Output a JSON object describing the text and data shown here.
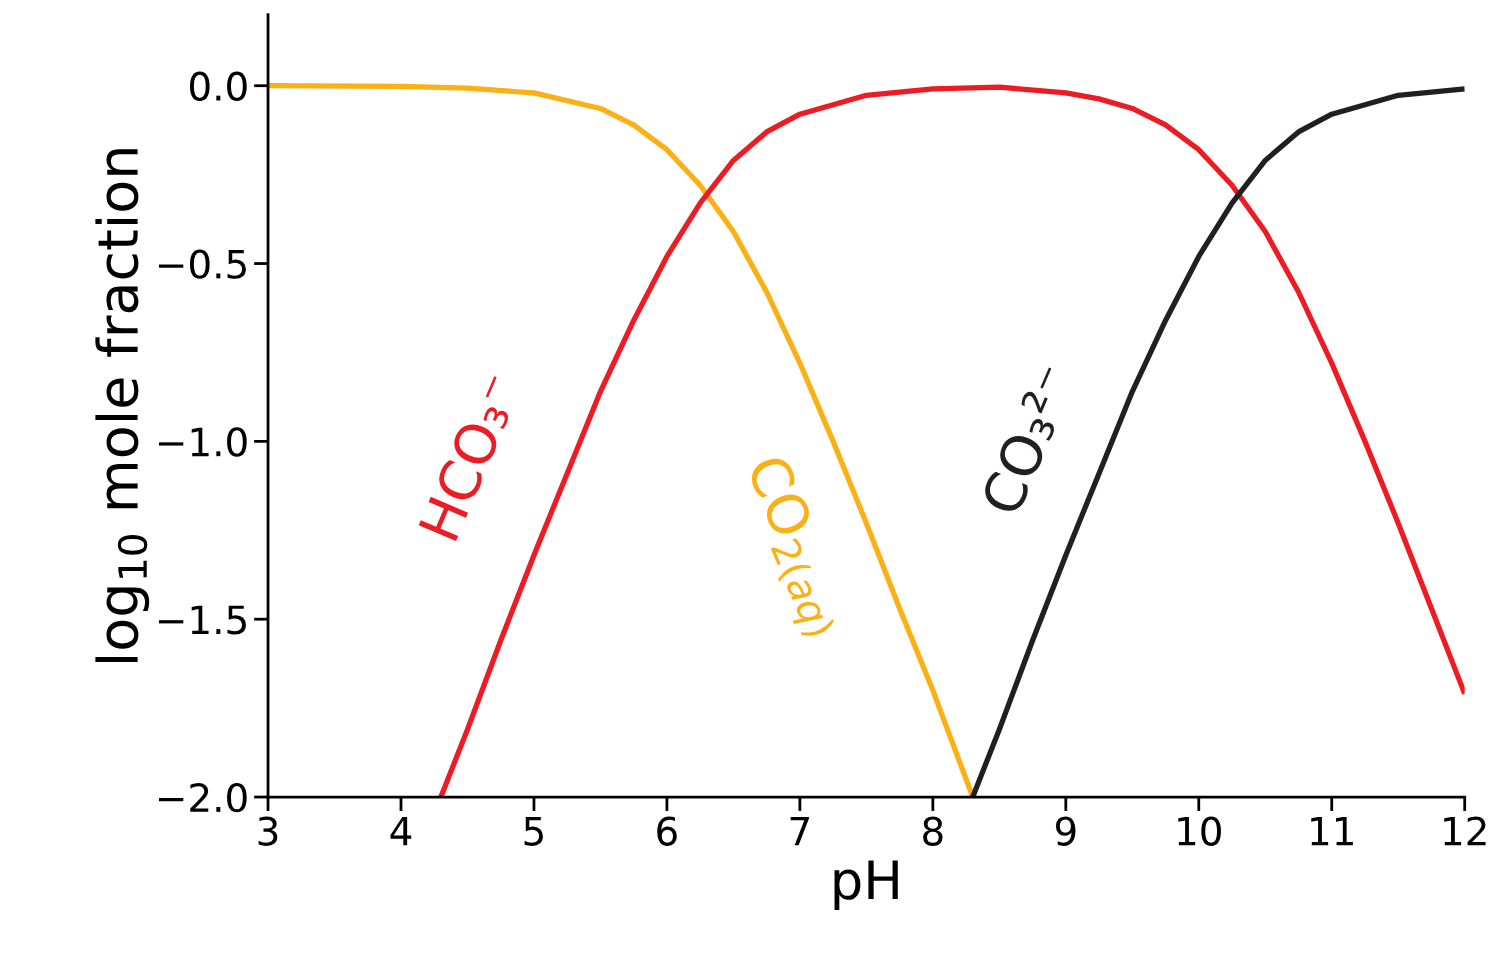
{
  "chart_data": {
    "type": "line",
    "xlabel": "pH",
    "ylabel": "log$_{10}$ mole fraction",
    "xlim": [
      3,
      12
    ],
    "ylim": [
      -2.0,
      0.2
    ],
    "xticks": [
      3,
      4,
      5,
      6,
      7,
      8,
      9,
      10,
      11,
      12
    ],
    "yticks": [
      {
        "value": 0.0,
        "label": "0.0"
      },
      {
        "value": -0.5,
        "label": "−0.5"
      },
      {
        "value": -1.0,
        "label": "−1.0"
      },
      {
        "value": -1.5,
        "label": "−1.5"
      },
      {
        "value": -2.0,
        "label": "−2.0"
      }
    ],
    "grid": false,
    "legend": false,
    "marker": "none",
    "line_style": "solid",
    "series": [
      {
        "name": "CO$_{2(aq)}$",
        "color": "#fbb016",
        "x": [
          3,
          4,
          4.5,
          5,
          5.5,
          5.75,
          6,
          6.25,
          6.5,
          6.75,
          7,
          7.25,
          7.5,
          7.75,
          8,
          8.3
        ],
        "values": [
          0.0,
          -0.002,
          -0.007,
          -0.02,
          -0.064,
          -0.11,
          -0.18,
          -0.28,
          -0.41,
          -0.58,
          -0.78,
          -1.0,
          -1.23,
          -1.47,
          -1.7,
          -2.0
        ]
      },
      {
        "name": "HCO₃⁻",
        "color": "#ed1c24",
        "x": [
          4.3,
          4.5,
          4.75,
          5,
          5.25,
          5.5,
          5.75,
          6,
          6.25,
          6.5,
          6.75,
          7,
          7.5,
          8,
          8.5,
          9,
          9.25,
          9.5,
          9.75,
          10,
          10.25,
          10.5,
          10.75,
          11,
          11.25,
          11.5,
          11.75,
          12
        ],
        "values": [
          -2.0,
          -1.81,
          -1.56,
          -1.32,
          -1.09,
          -0.86,
          -0.66,
          -0.48,
          -0.33,
          -0.21,
          -0.13,
          -0.08,
          -0.027,
          -0.009,
          -0.004,
          -0.02,
          -0.037,
          -0.064,
          -0.11,
          -0.18,
          -0.28,
          -0.41,
          -0.58,
          -0.78,
          -1.0,
          -1.23,
          -1.47,
          -1.71
        ]
      },
      {
        "name": "CO₃²⁻",
        "color": "#231f20",
        "x": [
          8.3,
          8.5,
          8.75,
          9,
          9.25,
          9.5,
          9.75,
          10,
          10.25,
          10.5,
          10.75,
          11,
          11.5,
          12
        ],
        "values": [
          -2.0,
          -1.81,
          -1.56,
          -1.32,
          -1.09,
          -0.86,
          -0.66,
          -0.48,
          -0.33,
          -0.21,
          -0.13,
          -0.08,
          -0.027,
          -0.009
        ]
      }
    ]
  }
}
